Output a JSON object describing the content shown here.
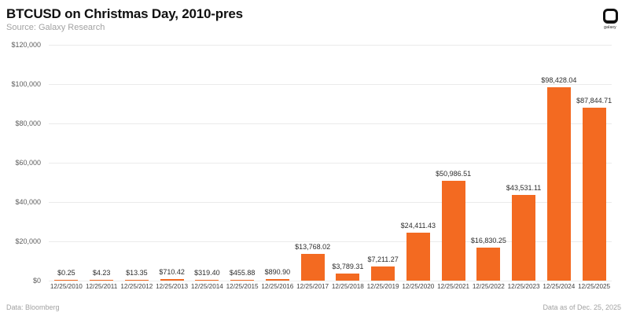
{
  "header": {
    "title": "BTCUSD on Christmas Day, 2010-pres",
    "subtitle": "Source: Galaxy Research",
    "logo_label": "galaxy"
  },
  "footer": {
    "left": "Data: Bloomberg",
    "right": "Data as of Dec. 25, 2025"
  },
  "colors": {
    "bar": "#f36a21",
    "grid": "#ebebeb",
    "title": "#101010",
    "muted": "#a2a2a2",
    "value_label": "#2d2d2d",
    "tick_label": "#3f3f3f",
    "ytick_label": "#5c5c5c"
  },
  "chart_data": {
    "type": "bar",
    "title": "BTCUSD on Christmas Day, 2010-pres",
    "xlabel": "",
    "ylabel": "",
    "ylim": [
      0,
      120000
    ],
    "grid": true,
    "legend": false,
    "categories": [
      "12/25/2010",
      "12/25/2011",
      "12/25/2012",
      "12/25/2013",
      "12/25/2014",
      "12/25/2015",
      "12/25/2016",
      "12/25/2017",
      "12/25/2018",
      "12/25/2019",
      "12/25/2020",
      "12/25/2021",
      "12/25/2022",
      "12/25/2023",
      "12/25/2024",
      "12/25/2025"
    ],
    "values": [
      0.25,
      4.23,
      13.35,
      710.42,
      319.4,
      455.88,
      890.9,
      13768.02,
      3789.31,
      7211.27,
      24411.43,
      50986.51,
      16830.25,
      43531.11,
      98428.04,
      87844.71
    ],
    "value_labels": [
      "$0.25",
      "$4.23",
      "$13.35",
      "$710.42",
      "$319.40",
      "$455.88",
      "$890.90",
      "$13,768.02",
      "$3,789.31",
      "$7,211.27",
      "$24,411.43",
      "$50,986.51",
      "$16,830.25",
      "$43,531.11",
      "$98,428.04",
      "$87,844.71"
    ],
    "yticks": [
      0,
      20000,
      40000,
      60000,
      80000,
      100000,
      120000
    ],
    "ytick_labels": [
      "$0",
      "$20,000",
      "$40,000",
      "$60,000",
      "$80,000",
      "$100,000",
      "$120,000"
    ]
  }
}
